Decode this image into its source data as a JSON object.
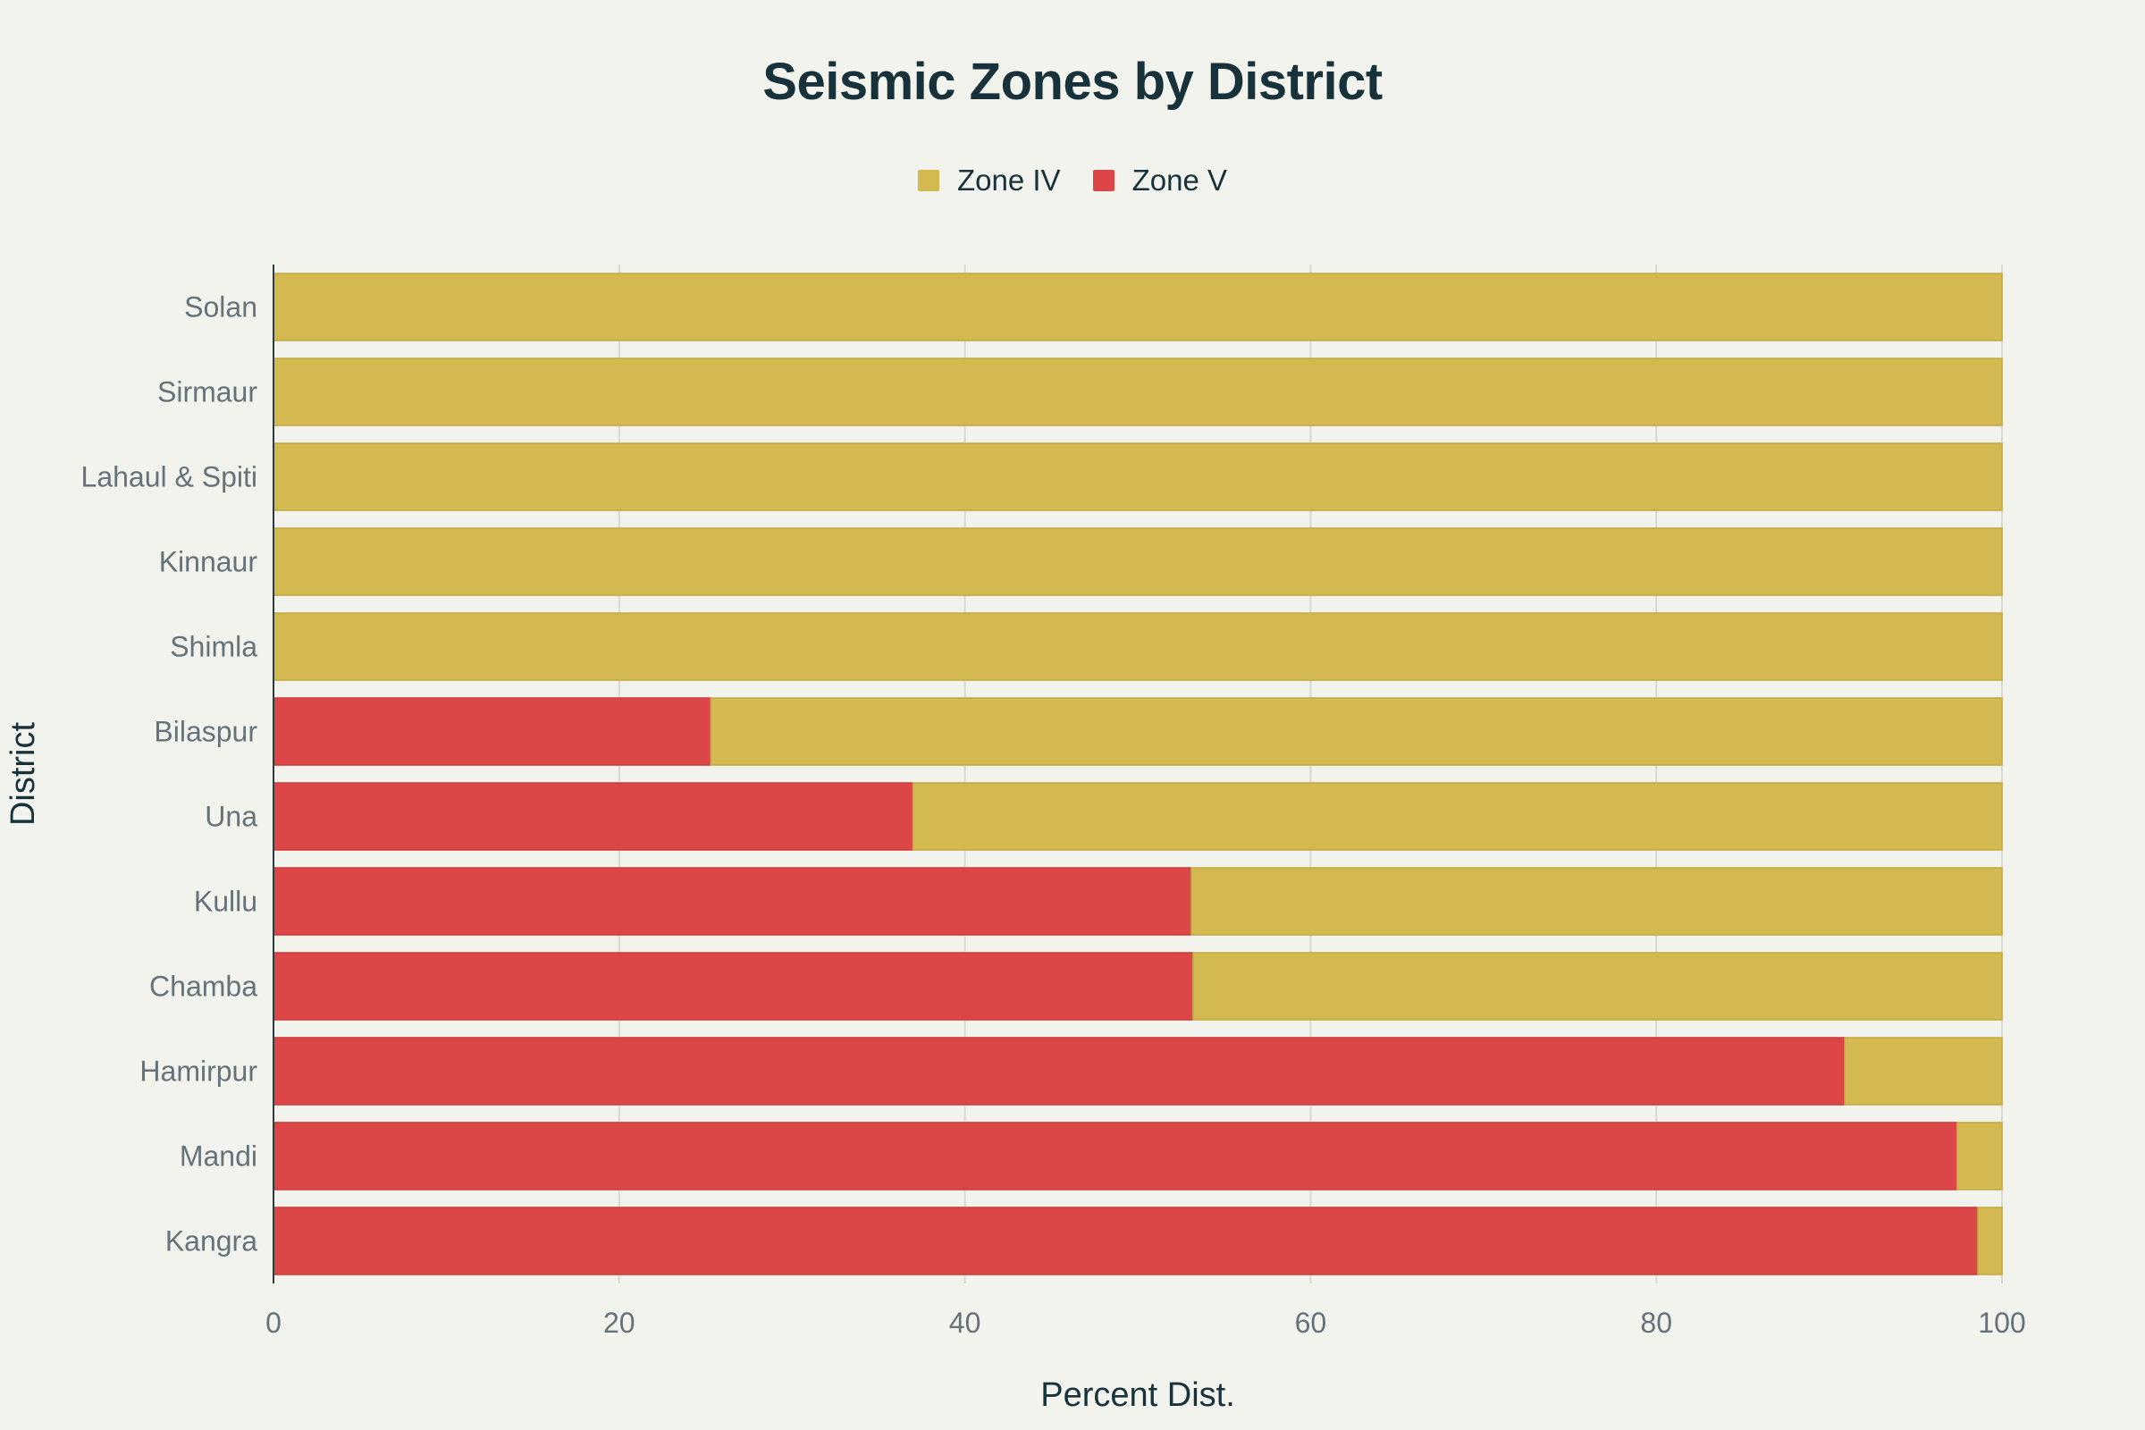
{
  "chart_data": {
    "type": "bar",
    "orientation": "horizontal",
    "stacked": true,
    "title": "Seismic Zones by District",
    "xlabel": "Percent Dist.",
    "ylabel": "District",
    "xlim": [
      0,
      100
    ],
    "xticks": [
      0,
      20,
      40,
      60,
      80,
      100
    ],
    "grid": true,
    "legend_position": "top-center",
    "categories": [
      "Kangra",
      "Mandi",
      "Hamirpur",
      "Chamba",
      "Kullu",
      "Una",
      "Bilaspur",
      "Shimla",
      "Kinnaur",
      "Lahaul & Spiti",
      "Sirmaur",
      "Solan"
    ],
    "series": [
      {
        "name": "Zone V",
        "color": "#dc4646",
        "values": [
          98.6,
          97.4,
          90.9,
          53.2,
          53.1,
          37.0,
          25.3,
          0,
          0,
          0,
          0,
          0
        ]
      },
      {
        "name": "Zone IV",
        "color": "#d3b94f",
        "values": [
          1.4,
          2.6,
          9.1,
          46.8,
          46.9,
          63.0,
          74.7,
          100,
          100,
          100,
          100,
          100
        ]
      }
    ],
    "legend_order": [
      "Zone IV",
      "Zone V"
    ]
  }
}
